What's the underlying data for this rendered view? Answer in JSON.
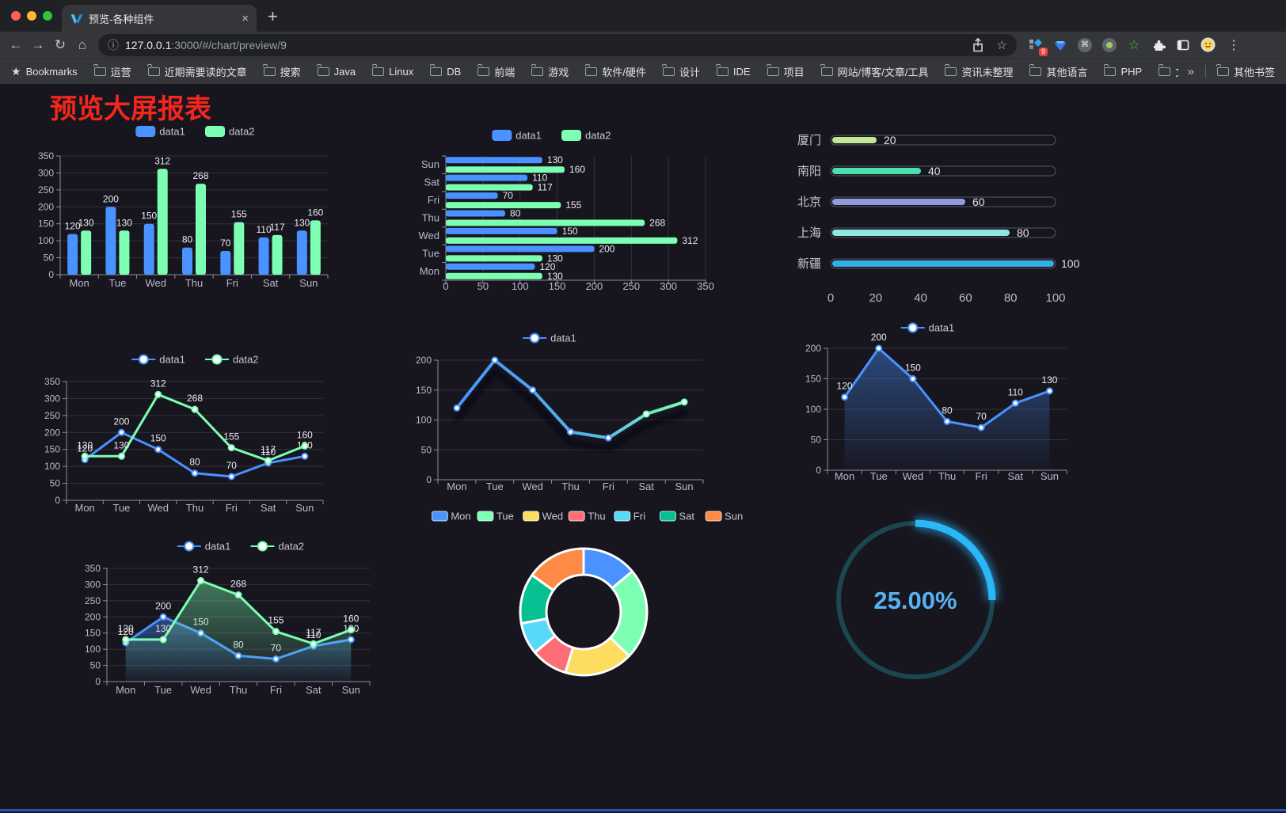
{
  "browser": {
    "tab_title": "预览-各种组件",
    "url": "127.0.0.1:3000/#/chart/preview/9",
    "url_host": "127.0.0.1",
    "url_rest": ":3000/#/chart/preview/9",
    "bookmarks_label": "Bookmarks",
    "bookmarks": [
      "运营",
      "近期需要读的文章",
      "搜索",
      "Java",
      "Linux",
      "DB",
      "前端",
      "游戏",
      "软件/硬件",
      "设计",
      "IDE",
      "项目",
      "网站/博客/文章/工具",
      "资讯未整理",
      "其他语言",
      "PHP",
      "文件服务器"
    ],
    "overflow_chevron": "»",
    "other_bookmarks": "其他书签",
    "extension_badge": "9"
  },
  "icons": {
    "back": "←",
    "forward": "→",
    "reload": "↻",
    "home": "⌂",
    "info": "ⓘ",
    "star": "☆",
    "menu": "⋮",
    "close": "×",
    "new_tab": "+",
    "bookmarks_star": "★",
    "green_star": "☆",
    "command": "⌘"
  },
  "page": {
    "title": "预览大屏报表",
    "title_color": "#f5261d",
    "background": "#17161f",
    "bottom_strip_color": "#2456b4"
  },
  "chart_data": [
    {
      "id": "bar-vertical",
      "type": "bar",
      "categories": [
        "Mon",
        "Tue",
        "Wed",
        "Thu",
        "Fri",
        "Sat",
        "Sun"
      ],
      "series": [
        {
          "name": "data1",
          "color": "#4992ff",
          "values": [
            120,
            200,
            150,
            80,
            70,
            110,
            130
          ]
        },
        {
          "name": "data2",
          "color": "#7cffb2",
          "values": [
            130,
            130,
            312,
            268,
            155,
            117,
            160
          ]
        }
      ],
      "ylim": [
        0,
        350
      ],
      "ytick_step": 50,
      "legend_position": "top",
      "grid": true
    },
    {
      "id": "bar-horizontal",
      "type": "bar",
      "orientation": "horizontal",
      "categories": [
        "Mon",
        "Tue",
        "Wed",
        "Thu",
        "Fri",
        "Sat",
        "Sun"
      ],
      "series": [
        {
          "name": "data1",
          "color": "#4992ff",
          "values": [
            120,
            200,
            150,
            80,
            70,
            110,
            130
          ]
        },
        {
          "name": "data2",
          "color": "#7cffb2",
          "values": [
            130,
            130,
            312,
            268,
            155,
            117,
            160
          ]
        }
      ],
      "xlim": [
        0,
        350
      ],
      "xtick_step": 50,
      "legend_position": "top",
      "grid": true
    },
    {
      "id": "city-progress",
      "type": "bar",
      "subtype": "progress-pill",
      "max": 100,
      "rows": [
        {
          "label": "厦门",
          "value": 20,
          "color": "#c3e796"
        },
        {
          "label": "南阳",
          "value": 40,
          "color": "#4ce0ae"
        },
        {
          "label": "北京",
          "value": 60,
          "color": "#949ae0"
        },
        {
          "label": "上海",
          "value": 80,
          "color": "#8fe6e2"
        },
        {
          "label": "新疆",
          "value": 100,
          "color": "#33aee6"
        }
      ],
      "xticks": [
        0,
        20,
        40,
        60,
        80,
        100
      ]
    },
    {
      "id": "line-two-series",
      "type": "line",
      "categories": [
        "Mon",
        "Tue",
        "Wed",
        "Thu",
        "Fri",
        "Sat",
        "Sun"
      ],
      "series": [
        {
          "name": "data1",
          "color": "#4992ff",
          "values": [
            120,
            200,
            150,
            80,
            70,
            110,
            130
          ]
        },
        {
          "name": "data2",
          "color": "#7cffb2",
          "values": [
            130,
            130,
            312,
            268,
            155,
            117,
            160
          ]
        }
      ],
      "ylim": [
        0,
        350
      ],
      "ytick_step": 50,
      "point_labels": true,
      "legend_position": "top"
    },
    {
      "id": "line-gradient-shadow",
      "type": "line",
      "categories": [
        "Mon",
        "Tue",
        "Wed",
        "Thu",
        "Fri",
        "Sat",
        "Sun"
      ],
      "series": [
        {
          "name": "data1",
          "gradient": [
            "#4992ff",
            "#7cffb2"
          ],
          "values": [
            120,
            200,
            150,
            80,
            70,
            110,
            130
          ]
        }
      ],
      "ylim": [
        0,
        200
      ],
      "ytick_step": 50,
      "point_labels": false,
      "shadow": true,
      "legend_position": "top"
    },
    {
      "id": "area-single",
      "type": "area",
      "categories": [
        "Mon",
        "Tue",
        "Wed",
        "Thu",
        "Fri",
        "Sat",
        "Sun"
      ],
      "series": [
        {
          "name": "data1",
          "color": "#4992ff",
          "values": [
            120,
            200,
            150,
            80,
            70,
            110,
            130
          ]
        }
      ],
      "ylim": [
        0,
        200
      ],
      "ytick_step": 50,
      "point_labels": true,
      "legend_position": "top"
    },
    {
      "id": "area-two-series",
      "type": "area",
      "categories": [
        "Mon",
        "Tue",
        "Wed",
        "Thu",
        "Fri",
        "Sat",
        "Sun"
      ],
      "series": [
        {
          "name": "data1",
          "color": "#4992ff",
          "values": [
            120,
            200,
            150,
            80,
            70,
            110,
            130
          ]
        },
        {
          "name": "data2",
          "color": "#7cffb2",
          "values": [
            130,
            130,
            312,
            268,
            155,
            117,
            160
          ]
        }
      ],
      "ylim": [
        0,
        350
      ],
      "ytick_step": 50,
      "point_labels": true,
      "legend_position": "top"
    },
    {
      "id": "donut",
      "type": "pie",
      "inner_radius_ratio": 0.59,
      "categories": [
        "Mon",
        "Tue",
        "Wed",
        "Thu",
        "Fri",
        "Sat",
        "Sun"
      ],
      "values": [
        120,
        200,
        150,
        80,
        70,
        110,
        130
      ],
      "colors": [
        "#4992ff",
        "#7cffb2",
        "#fddd60",
        "#ff6e76",
        "#58d9f9",
        "#05c091",
        "#ff8a45"
      ],
      "legend_position": "top"
    },
    {
      "id": "ring-gauge",
      "type": "gauge",
      "value": 25,
      "max": 100,
      "label": "25.00%",
      "arc_color": "#29b7f7",
      "track_color": "#1c4752",
      "text_color": "#57b2f1"
    }
  ]
}
